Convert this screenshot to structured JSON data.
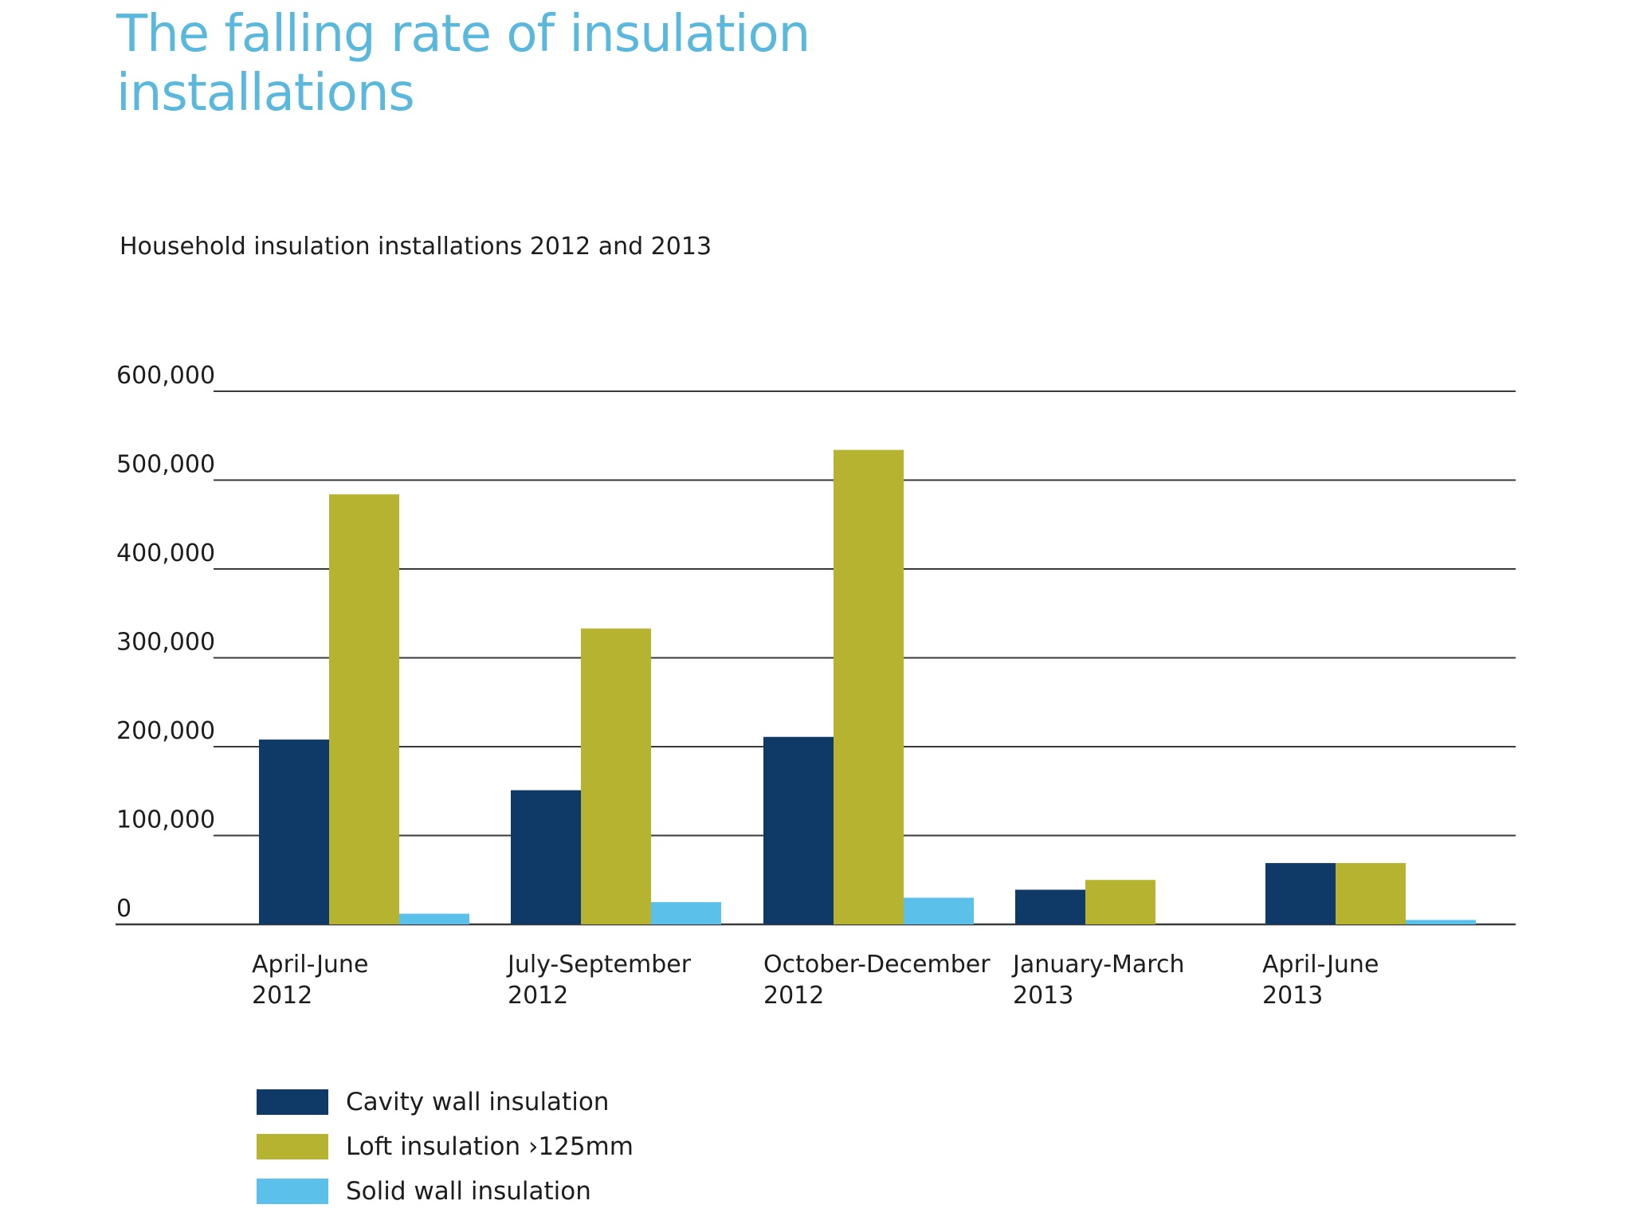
{
  "title": "The falling rate of insulation installations",
  "subtitle": "Household insulation installations 2012 and 2013",
  "colors": {
    "cavity": "#0f3a68",
    "loft": "#b5b32f",
    "solid": "#5bc1ea",
    "gridline": "#3a3a3a"
  },
  "chart_data": {
    "type": "bar",
    "title": "Household insulation installations 2012 and 2013",
    "xlabel": "",
    "ylabel": "",
    "ylim": [
      0,
      600000
    ],
    "yticks": [
      0,
      100000,
      200000,
      300000,
      400000,
      500000,
      600000
    ],
    "ytick_labels": [
      "0",
      "100,000",
      "200,000",
      "300,000",
      "400,000",
      "500,000",
      "600,000"
    ],
    "categories": [
      [
        "April-June",
        "2012"
      ],
      [
        "July-September",
        "2012"
      ],
      [
        "October-December",
        "2012"
      ],
      [
        "January-March",
        "2013"
      ],
      [
        "April-June",
        "2013"
      ]
    ],
    "series": [
      {
        "name": "Cavity wall insulation",
        "color": "#0f3a68",
        "values": [
          208000,
          151000,
          211000,
          39000,
          69000
        ]
      },
      {
        "name": "Loft insulation ›125mm",
        "color": "#b5b32f",
        "values": [
          484000,
          333000,
          534000,
          50000,
          69000
        ]
      },
      {
        "name": "Solid wall insulation",
        "color": "#5bc1ea",
        "values": [
          12000,
          25000,
          30000,
          0,
          5000
        ]
      }
    ],
    "grid": true,
    "legend_position": "bottom-left"
  }
}
